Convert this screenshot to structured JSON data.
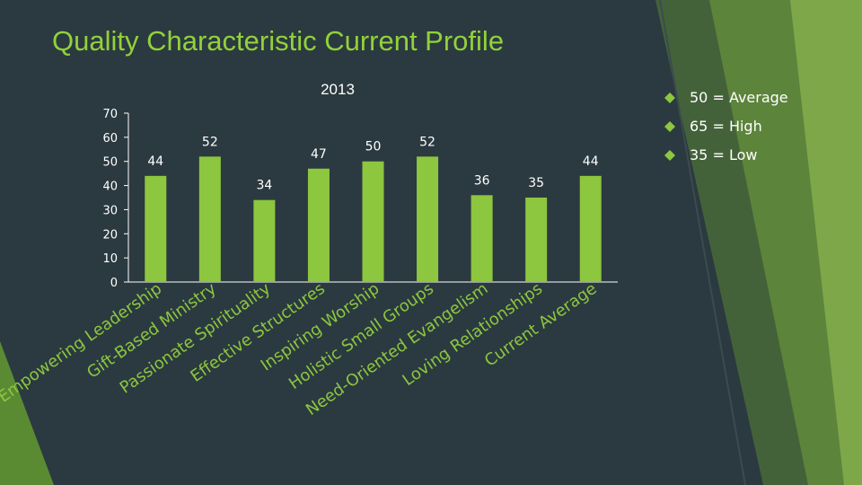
{
  "slide": {
    "title": "Quality Characteristic Current Profile"
  },
  "legend_notes": [
    {
      "text": "50 = Average",
      "bullet_icon": "diamond-bullet-icon"
    },
    {
      "text": "65 = High",
      "bullet_icon": "diamond-bullet-icon"
    },
    {
      "text": "35 = Low",
      "bullet_icon": "diamond-bullet-icon"
    }
  ],
  "colors": {
    "background": "#2b3a40",
    "accent_green": "#8dc63f",
    "title": "#93d13a",
    "text": "#ffffff"
  },
  "chart_data": {
    "type": "bar",
    "title": "2013",
    "xlabel": "",
    "ylabel": "",
    "ylim": [
      0,
      70
    ],
    "yticks": [
      0,
      10,
      20,
      30,
      40,
      50,
      60,
      70
    ],
    "grid": false,
    "categories": [
      "Empowering Leadership",
      "Gift-Based Ministry",
      "Passionate Spirituality",
      "Effective Structures",
      "Inspiring Worship",
      "Holistic Small Groups",
      "Need-Oriented Evangelism",
      "Loving Relationships",
      "Current Average"
    ],
    "series": [
      {
        "values": [
          44,
          52,
          34,
          47,
          50,
          52,
          36,
          35,
          44
        ],
        "color": "#8dc63f"
      }
    ],
    "data_labels": true
  }
}
